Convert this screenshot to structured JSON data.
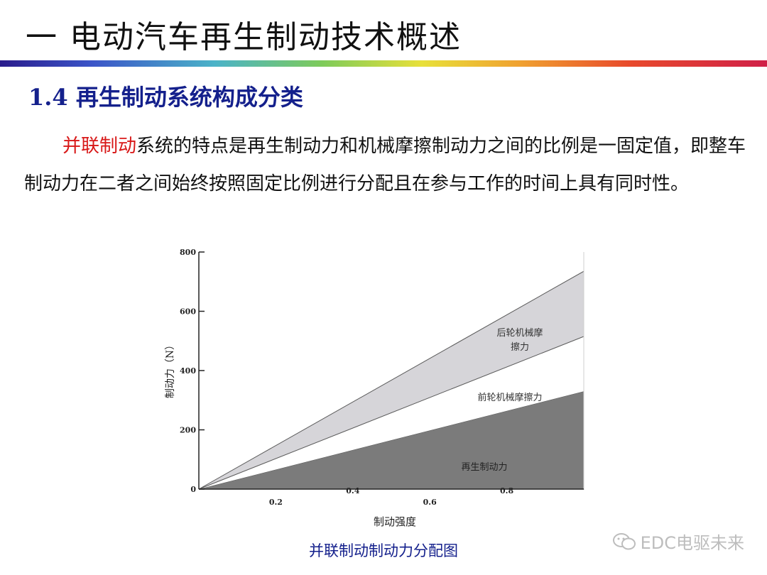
{
  "slide": {
    "title": "一 电动汽车再生制动技术概述",
    "section": "1.4 再生制动系统构成分类",
    "paragraph_lead": "并联制动",
    "paragraph_rest": "系统的特点是再生制动力和机械摩擦制动力之间的比例是一固定值，即整车制动力在二者之间始终按照固定比例进行分配且在参与工作的时间上具有同时性。",
    "caption": "并联制动制动力分配图",
    "watermark": "EDC电驱未来"
  },
  "colors": {
    "title_blue": "#14208c",
    "highlight_red": "#d81818",
    "rear_band": "#d6d5d9",
    "regen_band": "#7b7b7b"
  },
  "chart_data": {
    "type": "area",
    "xlabel": "制动强度",
    "ylabel": "制动力（N）",
    "x_ticks": [
      "0.2",
      "0.4",
      "0.6",
      "0.8"
    ],
    "y_ticks": [
      "0",
      "200",
      "400",
      "600",
      "800"
    ],
    "xlim": [
      0,
      1.0
    ],
    "ylim": [
      0,
      800
    ],
    "series": [
      {
        "name": "再生制动力",
        "x": [
          0,
          1.0
        ],
        "y_bottom": [
          0,
          0
        ],
        "y_top": [
          0,
          330
        ]
      },
      {
        "name": "前轮机械摩擦力",
        "x": [
          0,
          1.0
        ],
        "y_bottom": [
          0,
          330
        ],
        "y_top": [
          0,
          515
        ]
      },
      {
        "name": "后轮机械摩擦力",
        "x": [
          0,
          1.0
        ],
        "y_bottom": [
          0,
          515
        ],
        "y_top": [
          0,
          735
        ]
      }
    ],
    "annotations": {
      "rear_line1": "后轮机械摩",
      "rear_line2": "擦力",
      "front": "前轮机械摩擦力",
      "regen": "再生制动力"
    }
  }
}
